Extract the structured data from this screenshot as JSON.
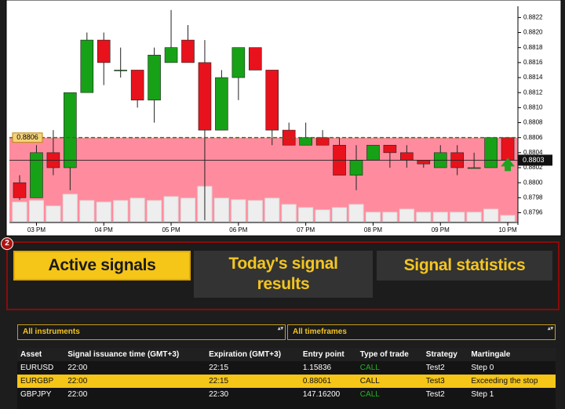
{
  "chart_data": {
    "type": "candlestick",
    "categories": [
      null,
      "03 PM",
      null,
      null,
      null,
      "04 PM",
      null,
      null,
      null,
      "05 PM",
      null,
      null,
      null,
      "06 PM",
      null,
      null,
      null,
      "07 PM",
      null,
      null,
      null,
      "08 PM",
      null,
      null,
      null,
      "09 PM",
      null,
      null,
      null,
      "10 PM"
    ],
    "open": [
      0.88,
      0.8798,
      0.8804,
      0.8802,
      0.8812,
      0.8819,
      0.8815,
      0.8815,
      0.8811,
      0.8816,
      0.8819,
      0.8816,
      0.8807,
      0.8814,
      0.8818,
      0.8815,
      0.8807,
      0.8805,
      0.8806,
      0.8805,
      0.8801,
      0.8803,
      0.8805,
      0.8804,
      0.8803,
      0.8802,
      0.8804,
      0.8802,
      0.8802,
      0.8806
    ],
    "close": [
      0.8798,
      0.8804,
      0.8802,
      0.8812,
      0.8819,
      0.8816,
      0.8815,
      0.8811,
      0.8817,
      0.8818,
      0.8816,
      0.8807,
      0.8814,
      0.8818,
      0.8815,
      0.8807,
      0.8805,
      0.8806,
      0.8805,
      0.8801,
      0.8803,
      0.8805,
      0.8804,
      0.8803,
      0.88025,
      0.8804,
      0.8802,
      0.8802,
      0.8806,
      0.8803
    ],
    "high": [
      0.8801,
      0.8805,
      0.8807,
      0.8812,
      0.882,
      0.882,
      0.8818,
      0.8815,
      0.8818,
      0.8823,
      0.8821,
      0.8819,
      0.8815,
      0.8818,
      0.8818,
      0.8815,
      0.8808,
      0.8808,
      0.8807,
      0.8806,
      0.8805,
      0.8805,
      0.8805,
      0.8805,
      0.8803,
      0.8805,
      0.8805,
      0.8804,
      0.8806,
      0.8806
    ],
    "low": [
      0.87977,
      0.8798,
      0.8801,
      0.8799,
      0.8812,
      0.8813,
      0.8814,
      0.881,
      0.8808,
      0.8816,
      0.8816,
      0.8795,
      0.8807,
      0.8811,
      0.8815,
      0.8805,
      0.8805,
      0.8805,
      0.8805,
      0.8801,
      0.8799,
      0.8803,
      0.8802,
      0.8802,
      0.8802,
      0.8802,
      0.8801,
      0.8802,
      0.8802,
      0.8802
    ],
    "volume": [
      25,
      27,
      20,
      35,
      27,
      25,
      27,
      30,
      27,
      32,
      30,
      45,
      30,
      28,
      27,
      30,
      22,
      18,
      15,
      18,
      22,
      12,
      12,
      16,
      12,
      12,
      12,
      12,
      16,
      8
    ],
    "up_color": "#17a117",
    "down_color": "#e8121c",
    "zone_color": "#ff8c9e",
    "volume_color": "#eeeeee",
    "ylim": [
      0.87948,
      0.88235
    ],
    "yticks": [
      0.8796,
      0.8798,
      {
        "value": 0.88,
        "label": "0.8800"
      },
      0.8802,
      0.8804,
      0.8806,
      0.8808,
      {
        "value": 0.881,
        "label": "0.8810"
      },
      0.8812,
      0.8814,
      0.8816,
      0.8818,
      {
        "value": 0.882,
        "label": "0.8820"
      },
      0.8822
    ],
    "signal_level": 0.8806,
    "current_price": 0.8803
  },
  "badge": "2",
  "tabs": [
    "Active signals",
    "Today's signal results",
    "Signal statistics"
  ],
  "filters": [
    "All instruments",
    "All timeframes"
  ],
  "table": {
    "columns": [
      "Asset",
      "Signal issuance time (GMT+3)",
      "Expiration (GMT+3)",
      "Entry point",
      "Type of trade",
      "Strategy",
      "Martingale"
    ],
    "rows": [
      [
        "EURUSD",
        "22:00",
        "22:15",
        "1.15836",
        "CALL",
        "Test2",
        "Step 0"
      ],
      [
        "EURGBP",
        "22:00",
        "22:15",
        "0.88061",
        "CALL",
        "Test3",
        "Exceeding the stop"
      ],
      [
        "GBPJPY",
        "22:00",
        "22:30",
        "147.16200",
        "CALL",
        "Test2",
        "Step 1"
      ]
    ]
  }
}
